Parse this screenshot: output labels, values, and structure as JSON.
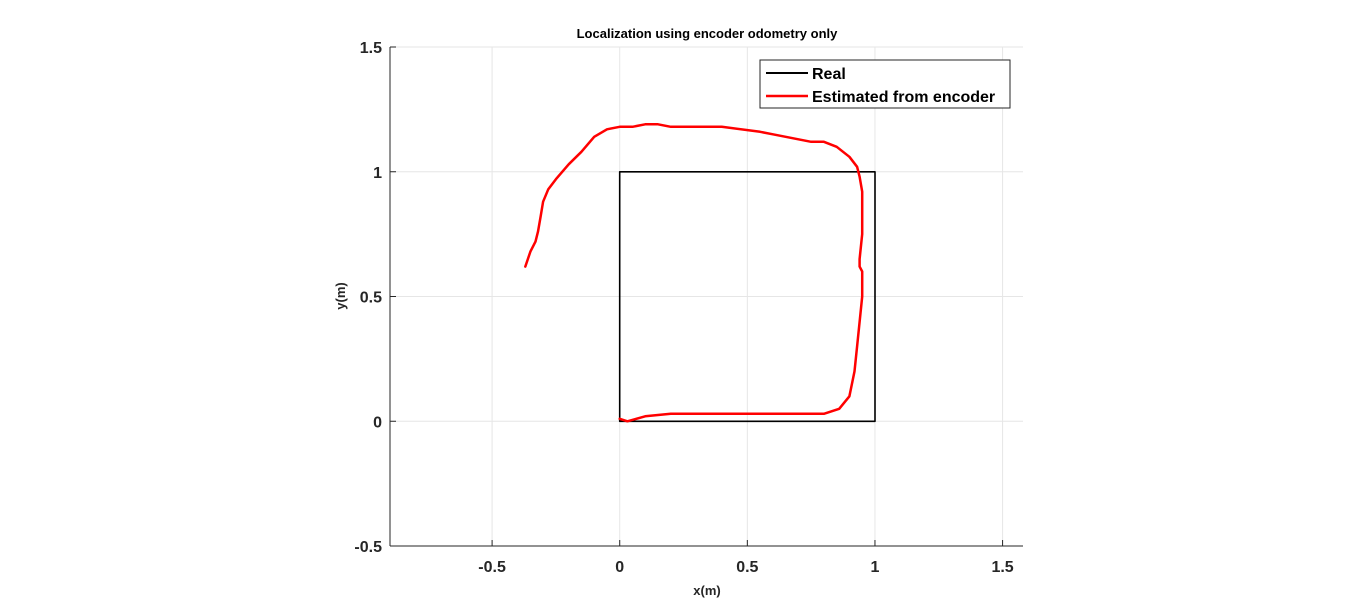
{
  "chart_data": {
    "type": "line",
    "title": "Localization using encoder odometry only",
    "xlabel": "x(m)",
    "ylabel": "y(m)",
    "xlim": [
      -0.9,
      1.58
    ],
    "ylim": [
      -0.5,
      1.5
    ],
    "xticks": [
      -0.5,
      0,
      0.5,
      1,
      1.5
    ],
    "xtick_labels": [
      "-0.5",
      "0",
      "0.5",
      "1",
      "1.5"
    ],
    "yticks": [
      -0.5,
      0,
      0.5,
      1,
      1.5
    ],
    "ytick_labels": [
      "-0.5",
      "0",
      "0.5",
      "1",
      "1.5"
    ],
    "grid": true,
    "legend_position": "top-right",
    "series": [
      {
        "name": "Real",
        "color": "#000000",
        "x": [
          0,
          1,
          1,
          0,
          0
        ],
        "y": [
          0,
          0,
          1,
          1,
          0
        ]
      },
      {
        "name": "Estimated from encoder",
        "color": "#ff0000",
        "x": [
          0,
          0.03,
          0.1,
          0.2,
          0.3,
          0.4,
          0.5,
          0.6,
          0.7,
          0.8,
          0.86,
          0.9,
          0.92,
          0.93,
          0.95,
          0.95,
          0.94,
          0.94,
          0.95,
          0.95,
          0.95,
          0.94,
          0.93,
          0.9,
          0.85,
          0.8,
          0.75,
          0.6,
          0.55,
          0.4,
          0.3,
          0.2,
          0.15,
          0.1,
          0.05,
          0,
          -0.05,
          -0.1,
          -0.15,
          -0.2,
          -0.25,
          -0.28,
          -0.3,
          -0.31,
          -0.32,
          -0.33,
          -0.35,
          -0.37
        ],
        "y": [
          0.01,
          0.0,
          0.02,
          0.03,
          0.03,
          0.03,
          0.03,
          0.03,
          0.03,
          0.03,
          0.05,
          0.1,
          0.2,
          0.3,
          0.5,
          0.6,
          0.62,
          0.65,
          0.75,
          0.85,
          0.92,
          0.98,
          1.02,
          1.06,
          1.1,
          1.12,
          1.12,
          1.15,
          1.16,
          1.18,
          1.18,
          1.18,
          1.19,
          1.19,
          1.18,
          1.18,
          1.17,
          1.14,
          1.08,
          1.03,
          0.97,
          0.93,
          0.88,
          0.82,
          0.76,
          0.72,
          0.68,
          0.62
        ]
      }
    ]
  }
}
